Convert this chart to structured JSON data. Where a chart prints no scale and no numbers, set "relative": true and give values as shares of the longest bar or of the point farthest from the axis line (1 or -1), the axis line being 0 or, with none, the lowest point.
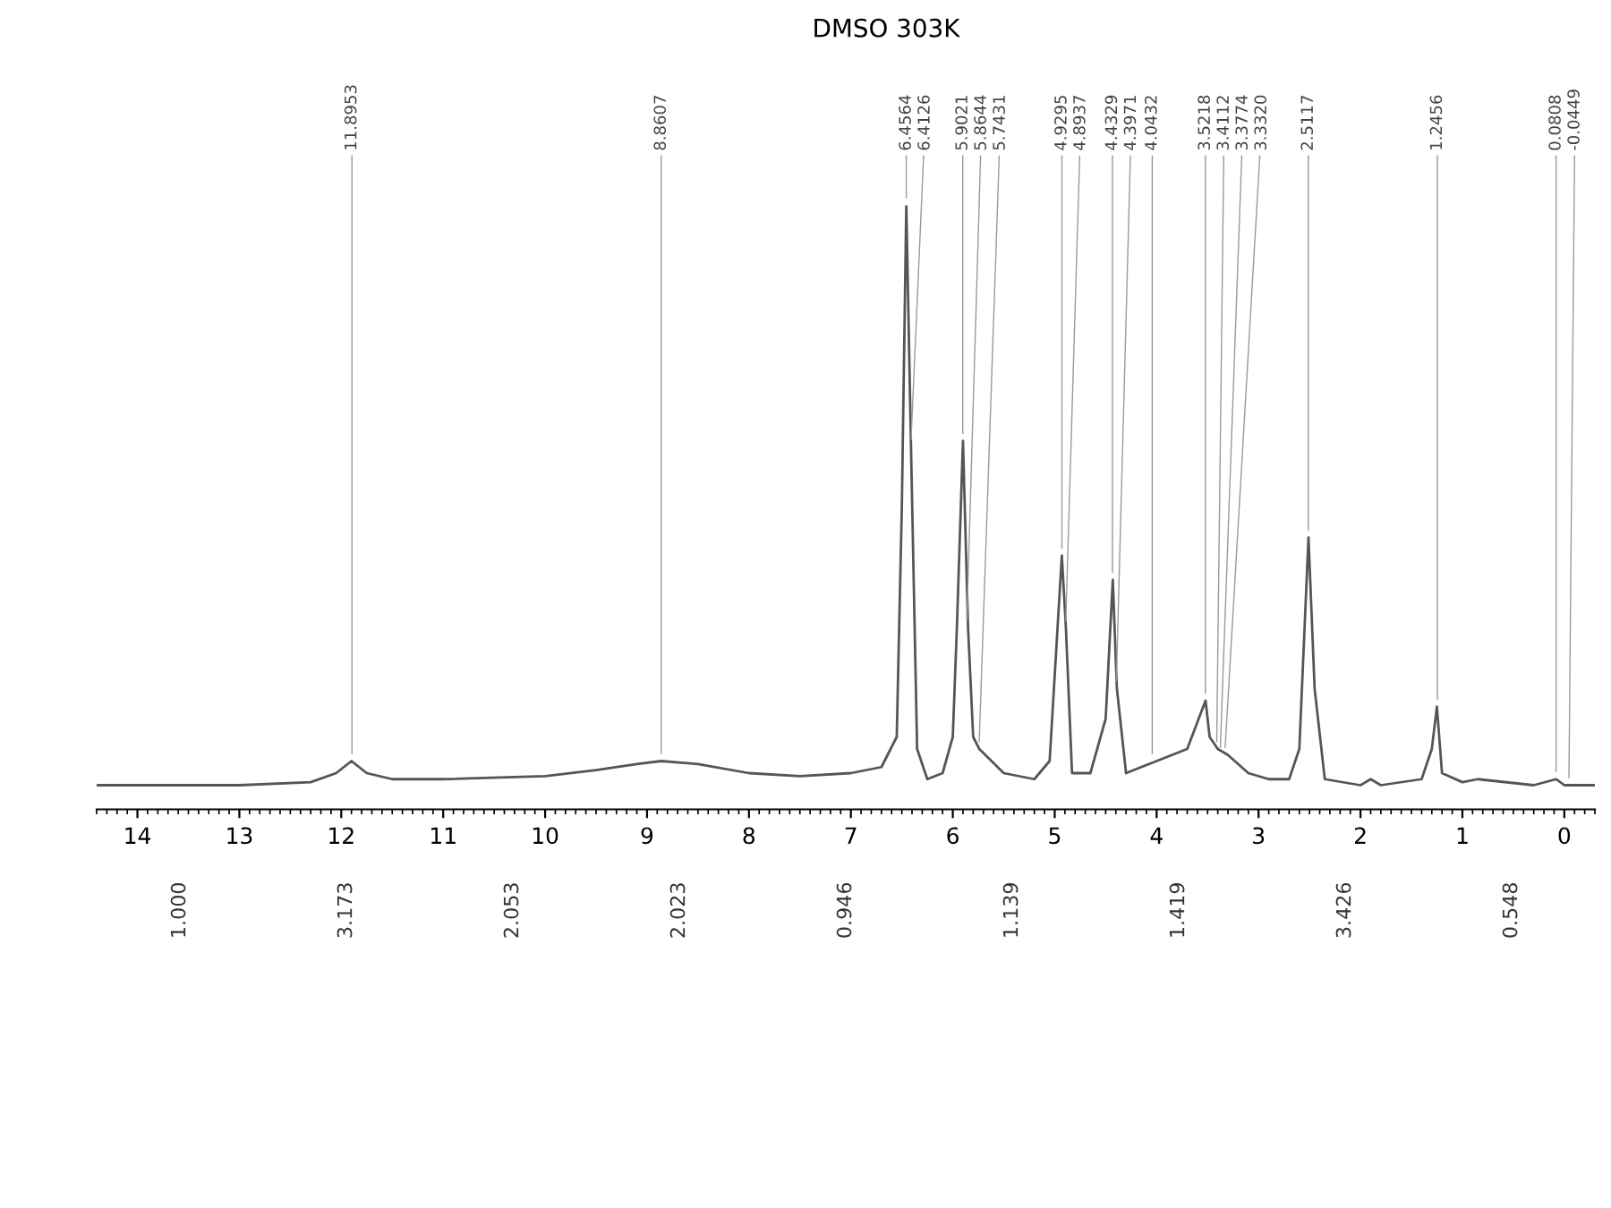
{
  "chart_data": {
    "type": "line",
    "title": "DMSO 303K",
    "relative": true,
    "color": "#555555",
    "tick_labels": "x",
    "grid": false,
    "legend": false,
    "marker": "none",
    "line_style": "solid",
    "xlim": [
      14.4,
      -0.3
    ],
    "xticks": [
      14,
      13,
      12,
      11,
      10,
      9,
      8,
      7,
      6,
      5,
      4,
      3,
      2,
      1,
      0
    ],
    "x": [
      14.4,
      13,
      12.3,
      12.05,
      11.9,
      11.75,
      11.5,
      11,
      10,
      9.5,
      9.1,
      8.86,
      8.5,
      8,
      7.5,
      7.0,
      6.7,
      6.55,
      6.5,
      6.456,
      6.41,
      6.35,
      6.25,
      6.1,
      6.0,
      5.96,
      5.9,
      5.85,
      5.8,
      5.74,
      5.5,
      5.2,
      5.05,
      4.93,
      4.89,
      4.83,
      4.65,
      4.5,
      4.43,
      4.39,
      4.3,
      4.0,
      3.7,
      3.52,
      3.48,
      3.4,
      3.3,
      3.1,
      2.9,
      2.7,
      2.6,
      2.51,
      2.45,
      2.35,
      2.0,
      1.9,
      1.8,
      1.4,
      1.3,
      1.25,
      1.2,
      1.0,
      0.85,
      0.3,
      0.08,
      0,
      -0.3
    ],
    "values": [
      0.04,
      0.04,
      0.045,
      0.06,
      0.08,
      0.06,
      0.05,
      0.05,
      0.055,
      0.065,
      0.075,
      0.08,
      0.075,
      0.06,
      0.055,
      0.06,
      0.07,
      0.12,
      0.5,
      1.0,
      0.6,
      0.1,
      0.05,
      0.06,
      0.12,
      0.3,
      0.61,
      0.3,
      0.12,
      0.1,
      0.06,
      0.05,
      0.08,
      0.42,
      0.3,
      0.06,
      0.06,
      0.15,
      0.38,
      0.2,
      0.06,
      0.08,
      0.1,
      0.18,
      0.12,
      0.1,
      0.09,
      0.06,
      0.05,
      0.05,
      0.1,
      0.45,
      0.2,
      0.05,
      0.04,
      0.05,
      0.04,
      0.05,
      0.1,
      0.17,
      0.06,
      0.045,
      0.05,
      0.04,
      0.05,
      0.04,
      0.04
    ],
    "annotations": [
      {
        "text": "11.8953",
        "x": 11.8953,
        "y": 0.08
      },
      {
        "text": "8.8607",
        "x": 8.8607,
        "y": 0.08
      },
      {
        "text": "6.4564",
        "x": 6.4564,
        "y": 1.0
      },
      {
        "text": "6.4126",
        "x": 6.4126,
        "y": 0.6
      },
      {
        "text": "5.9021",
        "x": 5.9021,
        "y": 0.61
      },
      {
        "text": "5.8644",
        "x": 5.8644,
        "y": 0.3
      },
      {
        "text": "5.7431",
        "x": 5.7431,
        "y": 0.1
      },
      {
        "text": "4.9295",
        "x": 4.9295,
        "y": 0.42
      },
      {
        "text": "4.8937",
        "x": 4.8937,
        "y": 0.3
      },
      {
        "text": "4.4329",
        "x": 4.4329,
        "y": 0.38
      },
      {
        "text": "4.3971",
        "x": 4.3971,
        "y": 0.2
      },
      {
        "text": "4.0432",
        "x": 4.0432,
        "y": 0.08
      },
      {
        "text": "3.5218",
        "x": 3.5218,
        "y": 0.18
      },
      {
        "text": "3.4112",
        "x": 3.4112,
        "y": 0.1
      },
      {
        "text": "3.3774",
        "x": 3.3774,
        "y": 0.09
      },
      {
        "text": "3.3320",
        "x": 3.332,
        "y": 0.09
      },
      {
        "text": "2.5117",
        "x": 2.5117,
        "y": 0.45
      },
      {
        "text": "1.2456",
        "x": 1.2456,
        "y": 0.17
      },
      {
        "text": "0.0808",
        "x": 0.0808,
        "y": 0.05
      },
      {
        "text": "-0.0449",
        "x": -0.0449,
        "y": 0.04
      },
      "1.000",
      "3.173",
      "2.053",
      "2.023",
      "0.946",
      "1.139",
      "1.419",
      "3.426",
      "0.548"
    ]
  }
}
